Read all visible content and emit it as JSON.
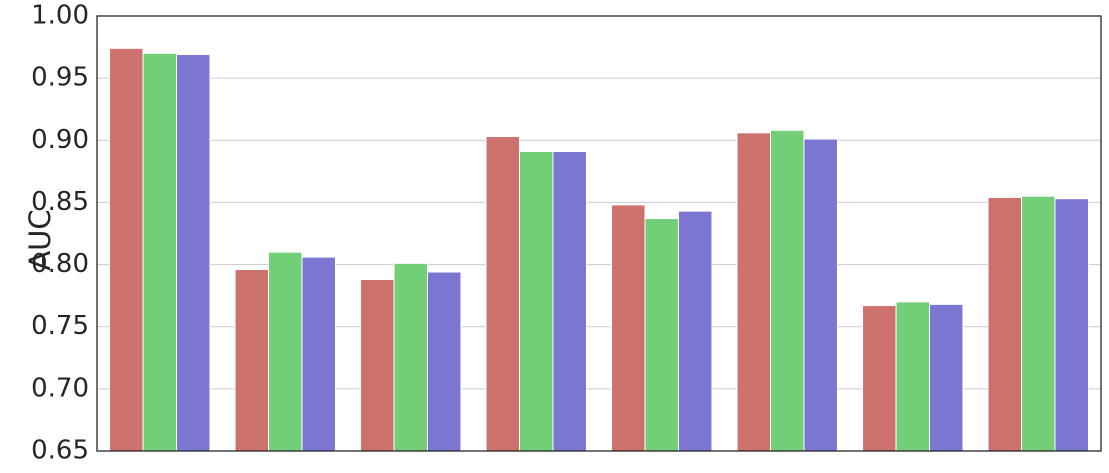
{
  "chart_data": {
    "type": "bar",
    "categories": [
      null,
      null,
      null,
      null,
      null,
      null,
      null,
      null
    ],
    "series": [
      {
        "color": "#cd716c",
        "values": [
          0.974,
          0.796,
          0.788,
          0.903,
          0.848,
          0.906,
          0.767,
          0.854
        ]
      },
      {
        "color": "#73cf77",
        "values": [
          0.97,
          0.81,
          0.801,
          0.891,
          0.837,
          0.908,
          0.77,
          0.855
        ]
      },
      {
        "color": "#7a76d1",
        "values": [
          0.969,
          0.806,
          0.794,
          0.891,
          0.843,
          0.901,
          0.768,
          0.853
        ]
      }
    ],
    "ylabel": "AUC",
    "ylim": [
      0.65,
      1.0
    ],
    "yticks": [
      0.65,
      {
        "value": 0.7,
        "label": "0.70"
      },
      0.75,
      {
        "value": 0.8,
        "label": "0.80"
      },
      0.85,
      {
        "value": 0.9,
        "label": "0.90"
      },
      0.95,
      {
        "value": 1.0,
        "label": "1.00"
      }
    ],
    "grid": true
  }
}
